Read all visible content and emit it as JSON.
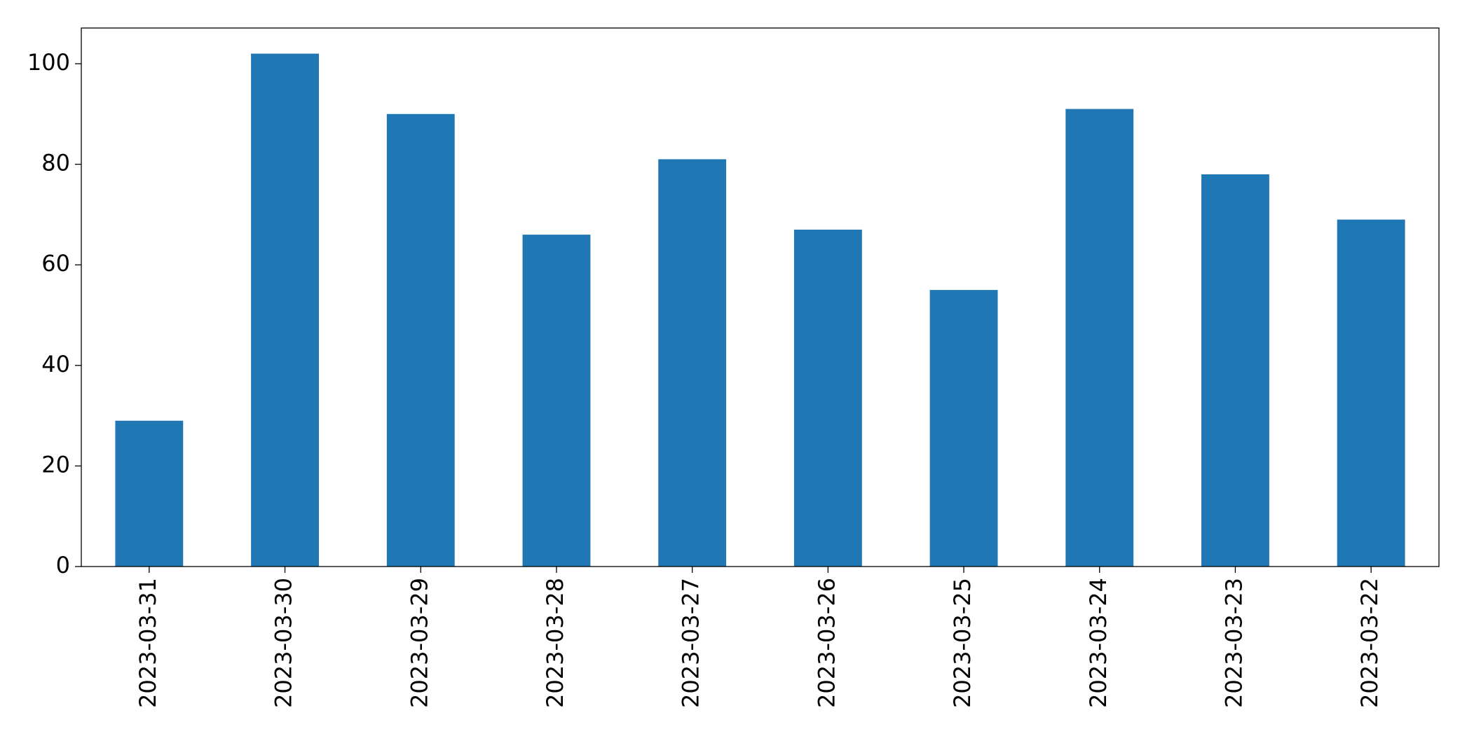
{
  "chart_data": {
    "type": "bar",
    "categories": [
      "2023-03-31",
      "2023-03-30",
      "2023-03-29",
      "2023-03-28",
      "2023-03-27",
      "2023-03-26",
      "2023-03-25",
      "2023-03-24",
      "2023-03-23",
      "2023-03-22"
    ],
    "values": [
      29,
      102,
      90,
      66,
      81,
      67,
      55,
      91,
      78,
      69
    ],
    "color": "#1f77b4",
    "ylim": [
      0,
      107.1
    ],
    "yticks": [
      0,
      20,
      40,
      60,
      80,
      100
    ],
    "grid": false
  }
}
